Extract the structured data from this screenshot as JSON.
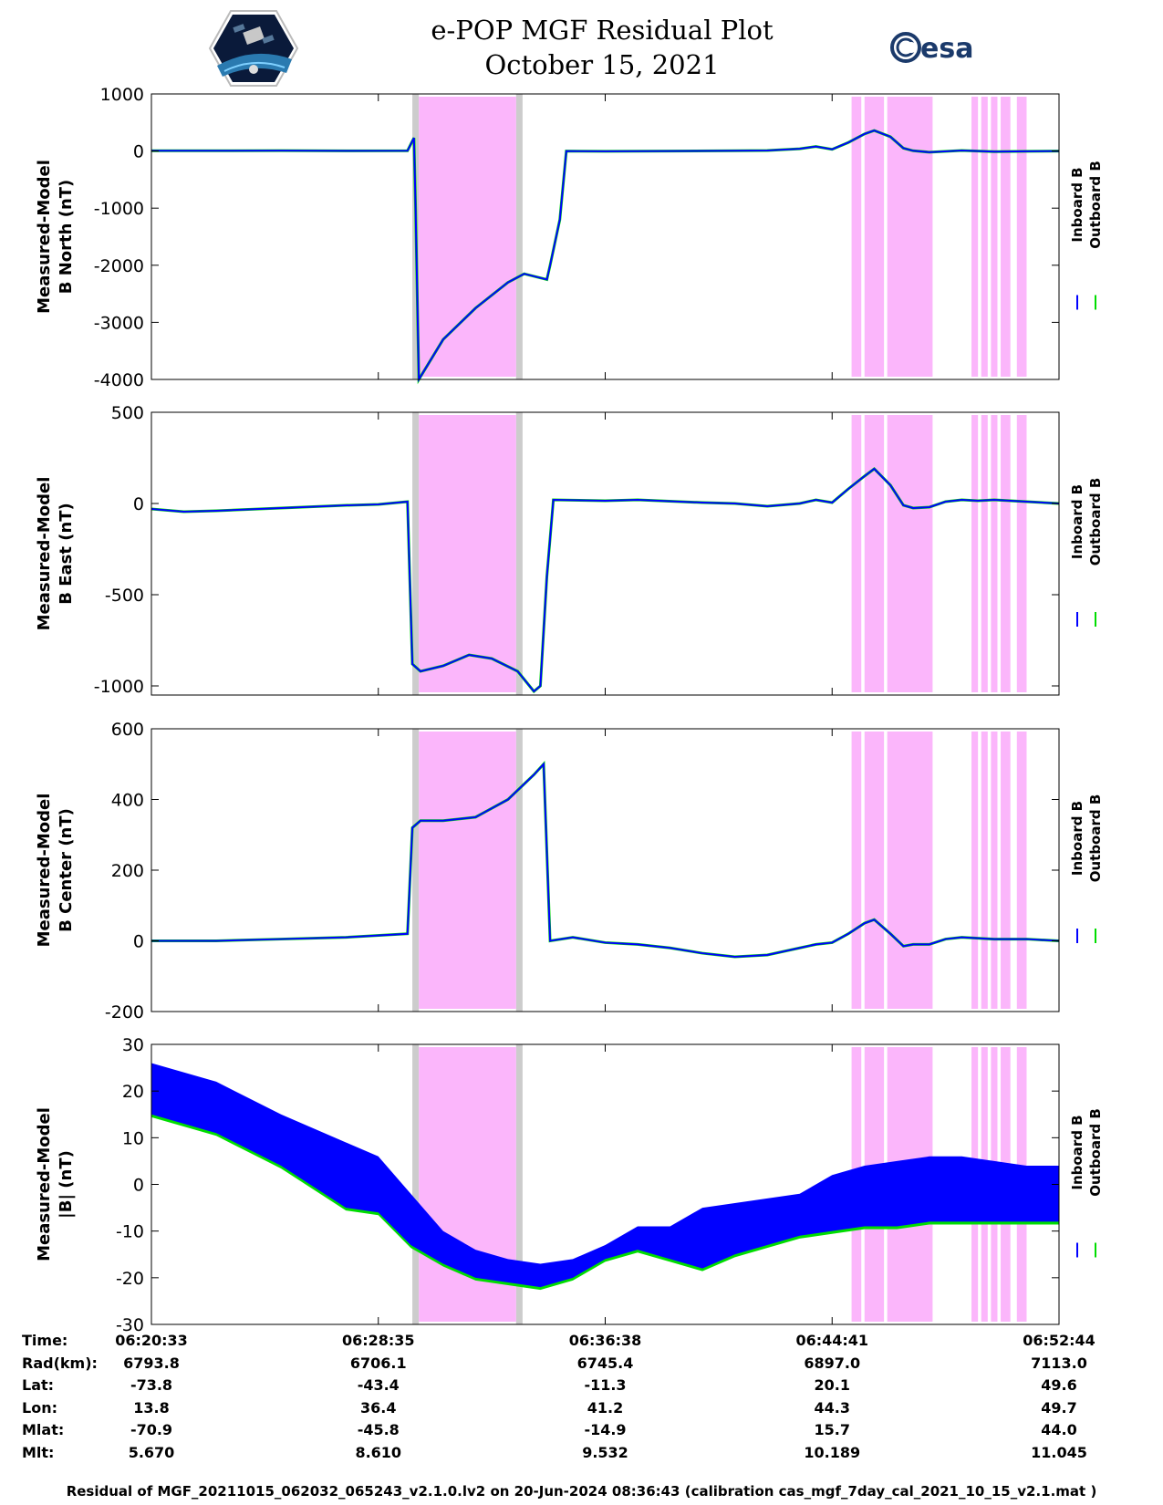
{
  "title_line1": "e-POP MGF Residual Plot",
  "title_line2": "October 15, 2021",
  "logos": {
    "left": "cassiope-mission-logo",
    "right_text": "esa"
  },
  "colors": {
    "inboard": "#0000ff",
    "outboard": "#00dd00",
    "highlight": "#fbb6fb",
    "gray_band": "#cccccc"
  },
  "chart_data": [
    {
      "type": "line",
      "ylabel_line1": "Measured-Model",
      "ylabel_line2": "B North (nT)",
      "ylim": [
        -4000,
        1000
      ],
      "yticks": [
        1000,
        0,
        -1000,
        -2000,
        -3000,
        -4000
      ],
      "ytick_labels": [
        "1000",
        "0",
        "-1000",
        "-2000",
        "-3000",
        "-4000"
      ],
      "legend": [
        "Inboard B",
        "Outboard B"
      ],
      "series_points": [
        [
          0,
          5
        ],
        [
          2,
          5
        ],
        [
          4,
          8
        ],
        [
          6,
          3
        ],
        [
          7.9,
          5
        ],
        [
          8.1,
          230
        ],
        [
          8.15,
          -1000
        ],
        [
          8.25,
          -4000
        ],
        [
          9,
          -3300
        ],
        [
          10,
          -2750
        ],
        [
          11,
          -2300
        ],
        [
          11.5,
          -2150
        ],
        [
          12.2,
          -2250
        ],
        [
          12.3,
          -2000
        ],
        [
          12.6,
          -1200
        ],
        [
          12.8,
          0
        ],
        [
          14,
          -5
        ],
        [
          16,
          0
        ],
        [
          18,
          5
        ],
        [
          19,
          10
        ],
        [
          20,
          40
        ],
        [
          20.5,
          80
        ],
        [
          21,
          30
        ],
        [
          21.5,
          150
        ],
        [
          22,
          300
        ],
        [
          22.3,
          360
        ],
        [
          22.8,
          250
        ],
        [
          23.2,
          50
        ],
        [
          23.5,
          5
        ],
        [
          24,
          -20
        ],
        [
          25,
          10
        ],
        [
          26,
          -10
        ],
        [
          27,
          -5
        ],
        [
          28,
          0
        ]
      ]
    },
    {
      "type": "line",
      "ylabel_line1": "Measured-Model",
      "ylabel_line2": "B East (nT)",
      "ylim": [
        -1050,
        500
      ],
      "yticks": [
        500,
        0,
        -500,
        -1000
      ],
      "ytick_labels": [
        "500",
        "0",
        "-500",
        "-1000"
      ],
      "legend": [
        "Inboard B",
        "Outboard B"
      ],
      "series_points": [
        [
          0,
          -30
        ],
        [
          1,
          -45
        ],
        [
          2,
          -40
        ],
        [
          4,
          -25
        ],
        [
          6,
          -10
        ],
        [
          7,
          -5
        ],
        [
          7.9,
          10
        ],
        [
          8.05,
          -880
        ],
        [
          8.3,
          -920
        ],
        [
          9,
          -890
        ],
        [
          9.8,
          -830
        ],
        [
          10.5,
          -850
        ],
        [
          11.3,
          -920
        ],
        [
          11.8,
          -1030
        ],
        [
          12,
          -1000
        ],
        [
          12.2,
          -400
        ],
        [
          12.4,
          20
        ],
        [
          14,
          15
        ],
        [
          15,
          20
        ],
        [
          17,
          5
        ],
        [
          18,
          0
        ],
        [
          19,
          -15
        ],
        [
          20,
          0
        ],
        [
          20.5,
          20
        ],
        [
          21,
          5
        ],
        [
          21.5,
          80
        ],
        [
          22,
          150
        ],
        [
          22.3,
          190
        ],
        [
          22.8,
          100
        ],
        [
          23.2,
          -10
        ],
        [
          23.5,
          -25
        ],
        [
          24,
          -20
        ],
        [
          24.5,
          10
        ],
        [
          25,
          20
        ],
        [
          25.5,
          15
        ],
        [
          26,
          20
        ],
        [
          27,
          10
        ],
        [
          28,
          0
        ]
      ]
    },
    {
      "type": "line",
      "ylabel_line1": "Measured-Model",
      "ylabel_line2": "B Center (nT)",
      "ylim": [
        -200,
        600
      ],
      "yticks": [
        600,
        400,
        200,
        0,
        -200
      ],
      "ytick_labels": [
        "600",
        "400",
        "200",
        "0",
        "-200"
      ],
      "legend": [
        "Inboard B",
        "Outboard B"
      ],
      "series_points": [
        [
          0,
          0
        ],
        [
          2,
          0
        ],
        [
          4,
          5
        ],
        [
          6,
          10
        ],
        [
          7.9,
          20
        ],
        [
          8.05,
          320
        ],
        [
          8.3,
          340
        ],
        [
          9,
          340
        ],
        [
          10,
          350
        ],
        [
          11,
          400
        ],
        [
          11.8,
          470
        ],
        [
          12.1,
          500
        ],
        [
          12.3,
          0
        ],
        [
          13,
          10
        ],
        [
          14,
          -5
        ],
        [
          15,
          -10
        ],
        [
          16,
          -20
        ],
        [
          17,
          -35
        ],
        [
          18,
          -45
        ],
        [
          19,
          -40
        ],
        [
          20,
          -20
        ],
        [
          20.5,
          -10
        ],
        [
          21,
          -5
        ],
        [
          21.5,
          20
        ],
        [
          22,
          50
        ],
        [
          22.3,
          60
        ],
        [
          22.8,
          20
        ],
        [
          23.2,
          -15
        ],
        [
          23.5,
          -10
        ],
        [
          24,
          -10
        ],
        [
          24.5,
          5
        ],
        [
          25,
          10
        ],
        [
          26,
          5
        ],
        [
          27,
          5
        ],
        [
          28,
          0
        ]
      ]
    },
    {
      "type": "area",
      "ylabel_line1": "Measured-Model",
      "ylabel_line2": "|B| (nT)",
      "ylim": [
        -30,
        30
      ],
      "yticks": [
        30,
        20,
        10,
        0,
        -10,
        -20,
        -30
      ],
      "ytick_labels": [
        "30",
        "20",
        "10",
        "0",
        "-10",
        "-20",
        "-30"
      ],
      "legend": [
        "Inboard B",
        "Outboard B"
      ],
      "upper_envelope": [
        [
          0,
          26
        ],
        [
          2,
          22
        ],
        [
          4,
          15
        ],
        [
          6,
          9
        ],
        [
          7,
          6
        ],
        [
          8,
          -2
        ],
        [
          9,
          -10
        ],
        [
          10,
          -14
        ],
        [
          11,
          -16
        ],
        [
          12,
          -17
        ],
        [
          13,
          -16
        ],
        [
          14,
          -13
        ],
        [
          15,
          -9
        ],
        [
          16,
          -9
        ],
        [
          17,
          -5
        ],
        [
          18,
          -4
        ],
        [
          19,
          -3
        ],
        [
          20,
          -2
        ],
        [
          21,
          2
        ],
        [
          22,
          4
        ],
        [
          23,
          5
        ],
        [
          24,
          6
        ],
        [
          25,
          6
        ],
        [
          26,
          5
        ],
        [
          27,
          4
        ],
        [
          28,
          4
        ]
      ],
      "lower_envelope": [
        [
          0,
          15
        ],
        [
          2,
          11
        ],
        [
          4,
          4
        ],
        [
          6,
          -5
        ],
        [
          7,
          -6
        ],
        [
          8,
          -13
        ],
        [
          9,
          -17
        ],
        [
          10,
          -20
        ],
        [
          11,
          -21
        ],
        [
          12,
          -22
        ],
        [
          13,
          -20
        ],
        [
          14,
          -16
        ],
        [
          15,
          -14
        ],
        [
          16,
          -16
        ],
        [
          17,
          -18
        ],
        [
          18,
          -15
        ],
        [
          19,
          -13
        ],
        [
          20,
          -11
        ],
        [
          21,
          -10
        ],
        [
          22,
          -9
        ],
        [
          23,
          -9
        ],
        [
          24,
          -8
        ],
        [
          25,
          -8
        ],
        [
          26,
          -8
        ],
        [
          27,
          -8
        ],
        [
          28,
          -8
        ]
      ]
    }
  ],
  "x_range": [
    0,
    28
  ],
  "x_ticks": [
    0,
    7,
    14,
    21,
    28
  ],
  "highlight_spans": [
    [
      8.25,
      11.25
    ],
    [
      21.6,
      21.9
    ],
    [
      22.0,
      22.6
    ],
    [
      22.7,
      24.1
    ],
    [
      25.3,
      25.5
    ],
    [
      25.6,
      25.8
    ],
    [
      25.9,
      26.1
    ],
    [
      26.2,
      26.5
    ],
    [
      26.7,
      27.0
    ]
  ],
  "gray_spans": [
    [
      8.05,
      8.25
    ],
    [
      11.25,
      11.45
    ]
  ],
  "info_table": {
    "labels": [
      "Time:",
      "Rad(km):",
      "Lat:",
      "Lon:",
      "Mlat:",
      "Mlt:"
    ],
    "columns": [
      [
        "06:20:33",
        "6793.8",
        "-73.8",
        "13.8",
        "-70.9",
        "5.670"
      ],
      [
        "06:28:35",
        "6706.1",
        "-43.4",
        "36.4",
        "-45.8",
        "8.610"
      ],
      [
        "06:36:38",
        "6745.4",
        "-11.3",
        "41.2",
        "-14.9",
        "9.532"
      ],
      [
        "06:44:41",
        "6897.0",
        "20.1",
        "44.3",
        "15.7",
        "10.189"
      ],
      [
        "06:52:44",
        "7113.0",
        "49.6",
        "49.7",
        "44.0",
        "11.045"
      ]
    ]
  },
  "footer": "Residual of MGF_20211015_062032_065243_v2.1.0.lv2 on 20-Jun-2024 08:36:43 (calibration cas_mgf_7day_cal_2021_10_15_v2.1.mat )"
}
